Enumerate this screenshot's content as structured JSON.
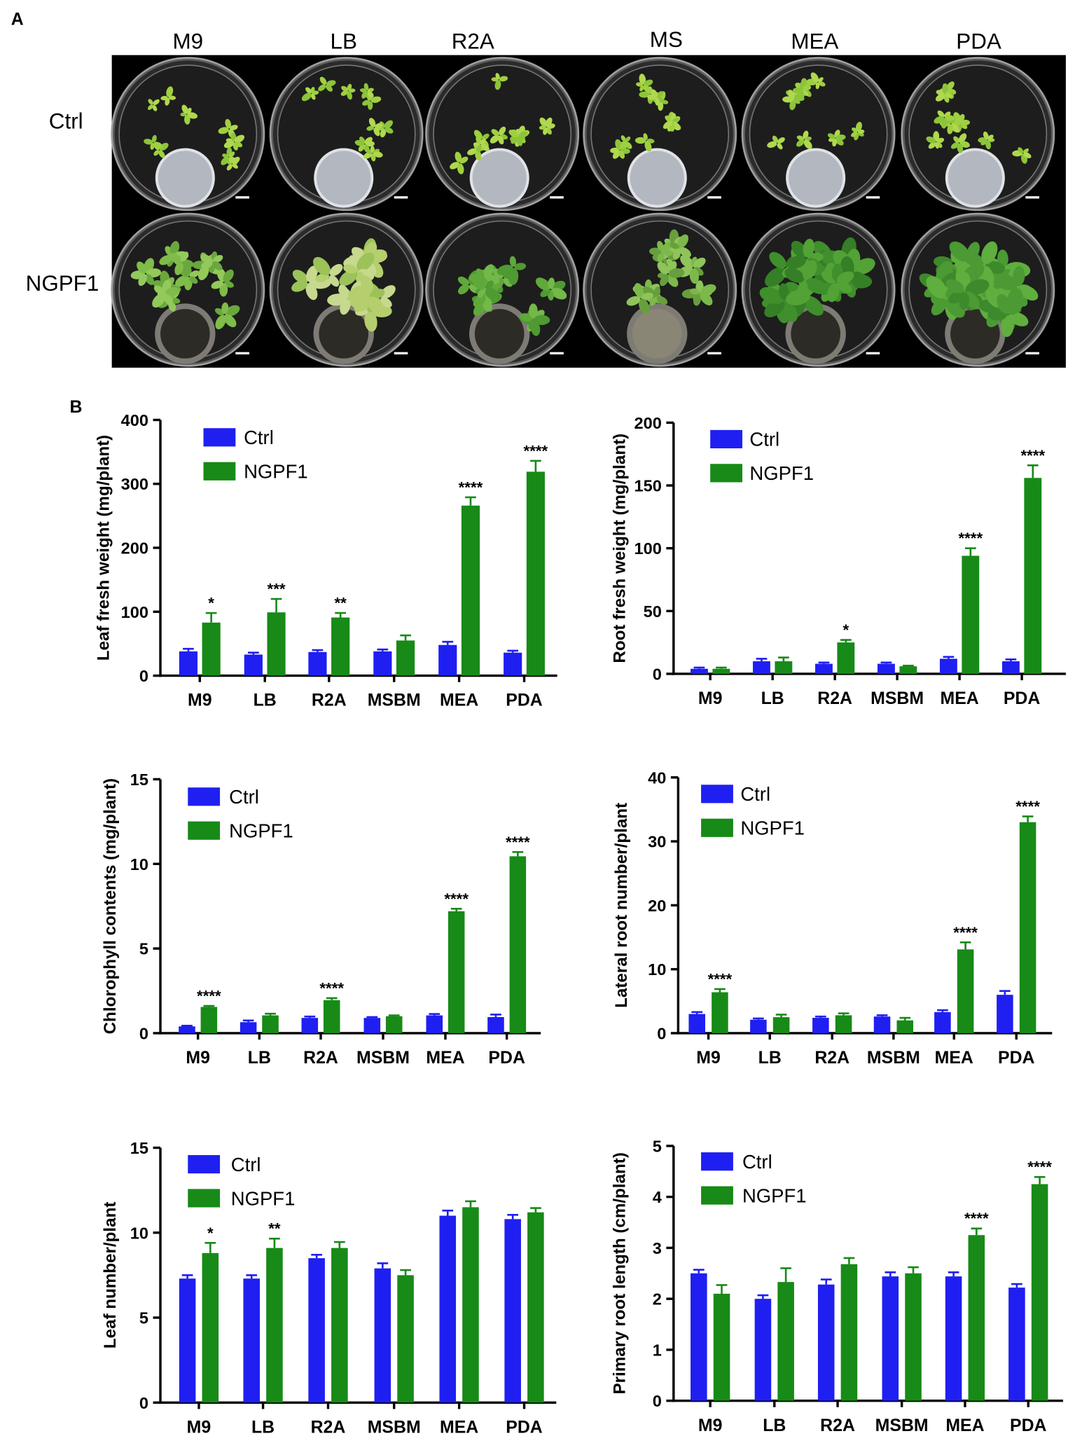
{
  "figure": {
    "panel_a": {
      "label": "A",
      "columns": [
        "M9",
        "LB",
        "R2A",
        "MS",
        "MEA",
        "PDA"
      ],
      "rows": [
        "Ctrl",
        "NGPF1"
      ]
    },
    "panel_b": {
      "label": "B"
    }
  },
  "colors": {
    "ctrl": "#1f1ff2",
    "ngpf1": "#178a17"
  },
  "chart_data": [
    {
      "type": "bar",
      "ylabel": "Leaf fresh weight (mg/plant)",
      "categories": [
        "M9",
        "LB",
        "R2A",
        "MSBM",
        "MEA",
        "PDA"
      ],
      "ylim": [
        0,
        400
      ],
      "yticks": [
        0,
        100,
        200,
        300,
        400
      ],
      "series": [
        {
          "name": "Ctrl",
          "values": [
            38,
            33,
            37,
            38,
            48,
            36
          ],
          "errors": [
            4,
            3,
            3,
            3,
            5,
            3
          ]
        },
        {
          "name": "NGPF1",
          "values": [
            83,
            99,
            91,
            55,
            266,
            319
          ],
          "errors": [
            15,
            21,
            7,
            8,
            13,
            17
          ],
          "significance": [
            "*",
            "***",
            "**",
            "",
            "****",
            "****"
          ]
        }
      ]
    },
    {
      "type": "bar",
      "ylabel": "Root fresh weight (mg/plant)",
      "categories": [
        "M9",
        "LB",
        "R2A",
        "MSBM",
        "MEA",
        "PDA"
      ],
      "ylim": [
        0,
        200
      ],
      "yticks": [
        0,
        50,
        100,
        150,
        200
      ],
      "series": [
        {
          "name": "Ctrl",
          "values": [
            4,
            10,
            8,
            8,
            12,
            10
          ],
          "errors": [
            1,
            2,
            1,
            1,
            1.5,
            1.5
          ]
        },
        {
          "name": "NGPF1",
          "values": [
            4,
            10,
            25,
            6,
            94,
            156
          ],
          "errors": [
            1,
            3,
            2,
            0.5,
            6,
            10
          ],
          "significance": [
            "",
            "",
            "*",
            "",
            "****",
            "****"
          ]
        }
      ]
    },
    {
      "type": "bar",
      "ylabel": "Chlorophyll contents (mg/plant)",
      "categories": [
        "M9",
        "LB",
        "R2A",
        "MSBM",
        "MEA",
        "PDA"
      ],
      "ylim": [
        0,
        15
      ],
      "yticks": [
        0,
        5,
        10,
        15
      ],
      "series": [
        {
          "name": "Ctrl",
          "values": [
            0.4,
            0.65,
            0.9,
            0.9,
            1.05,
            0.95
          ],
          "errors": [
            0.04,
            0.1,
            0.08,
            0.05,
            0.08,
            0.15
          ]
        },
        {
          "name": "NGPF1",
          "values": [
            1.55,
            1.05,
            1.95,
            1.0,
            7.2,
            10.45
          ],
          "errors": [
            0.06,
            0.1,
            0.12,
            0.05,
            0.15,
            0.25
          ],
          "significance": [
            "****",
            "",
            "****",
            "",
            "****",
            "****"
          ]
        }
      ]
    },
    {
      "type": "bar",
      "ylabel": "Lateral root number/plant",
      "categories": [
        "M9",
        "LB",
        "R2A",
        "MSBM",
        "MEA",
        "PDA"
      ],
      "ylim": [
        0,
        40
      ],
      "yticks": [
        0,
        10,
        20,
        30,
        40
      ],
      "series": [
        {
          "name": "Ctrl",
          "values": [
            3.0,
            2.1,
            2.4,
            2.6,
            3.3,
            6.0
          ],
          "errors": [
            0.3,
            0.2,
            0.2,
            0.2,
            0.3,
            0.6
          ]
        },
        {
          "name": "NGPF1",
          "values": [
            6.4,
            2.5,
            2.8,
            2.0,
            13.1,
            33.0
          ],
          "errors": [
            0.5,
            0.4,
            0.3,
            0.4,
            1.1,
            0.9
          ],
          "significance": [
            "****",
            "",
            "",
            "",
            "****",
            "****"
          ]
        }
      ]
    },
    {
      "type": "bar",
      "ylabel": "Leaf number/plant",
      "categories": [
        "M9",
        "LB",
        "R2A",
        "MSBM",
        "MEA",
        "PDA"
      ],
      "ylim": [
        0,
        15
      ],
      "yticks": [
        0,
        5,
        10,
        15
      ],
      "series": [
        {
          "name": "Ctrl",
          "values": [
            7.3,
            7.3,
            8.5,
            7.9,
            11.0,
            10.8
          ],
          "errors": [
            0.2,
            0.2,
            0.2,
            0.3,
            0.3,
            0.25
          ]
        },
        {
          "name": "NGPF1",
          "values": [
            8.8,
            9.1,
            9.1,
            7.5,
            11.5,
            11.2
          ],
          "errors": [
            0.6,
            0.55,
            0.35,
            0.3,
            0.35,
            0.25
          ],
          "significance": [
            "*",
            "**",
            "",
            "",
            "",
            ""
          ]
        }
      ]
    },
    {
      "type": "bar",
      "ylabel": "Primary root length (cm/plant)",
      "categories": [
        "M9",
        "LB",
        "R2A",
        "MSBM",
        "MEA",
        "PDA"
      ],
      "ylim": [
        0,
        5
      ],
      "yticks": [
        0,
        1,
        2,
        3,
        4,
        5
      ],
      "series": [
        {
          "name": "Ctrl",
          "values": [
            2.5,
            2.0,
            2.28,
            2.44,
            2.44,
            2.22
          ],
          "errors": [
            0.07,
            0.07,
            0.1,
            0.08,
            0.08,
            0.07
          ]
        },
        {
          "name": "NGPF1",
          "values": [
            2.1,
            2.33,
            2.68,
            2.5,
            3.25,
            4.25
          ],
          "errors": [
            0.17,
            0.27,
            0.12,
            0.12,
            0.13,
            0.14
          ],
          "significance": [
            "",
            "",
            "",
            "",
            "****",
            "****"
          ]
        }
      ]
    }
  ]
}
